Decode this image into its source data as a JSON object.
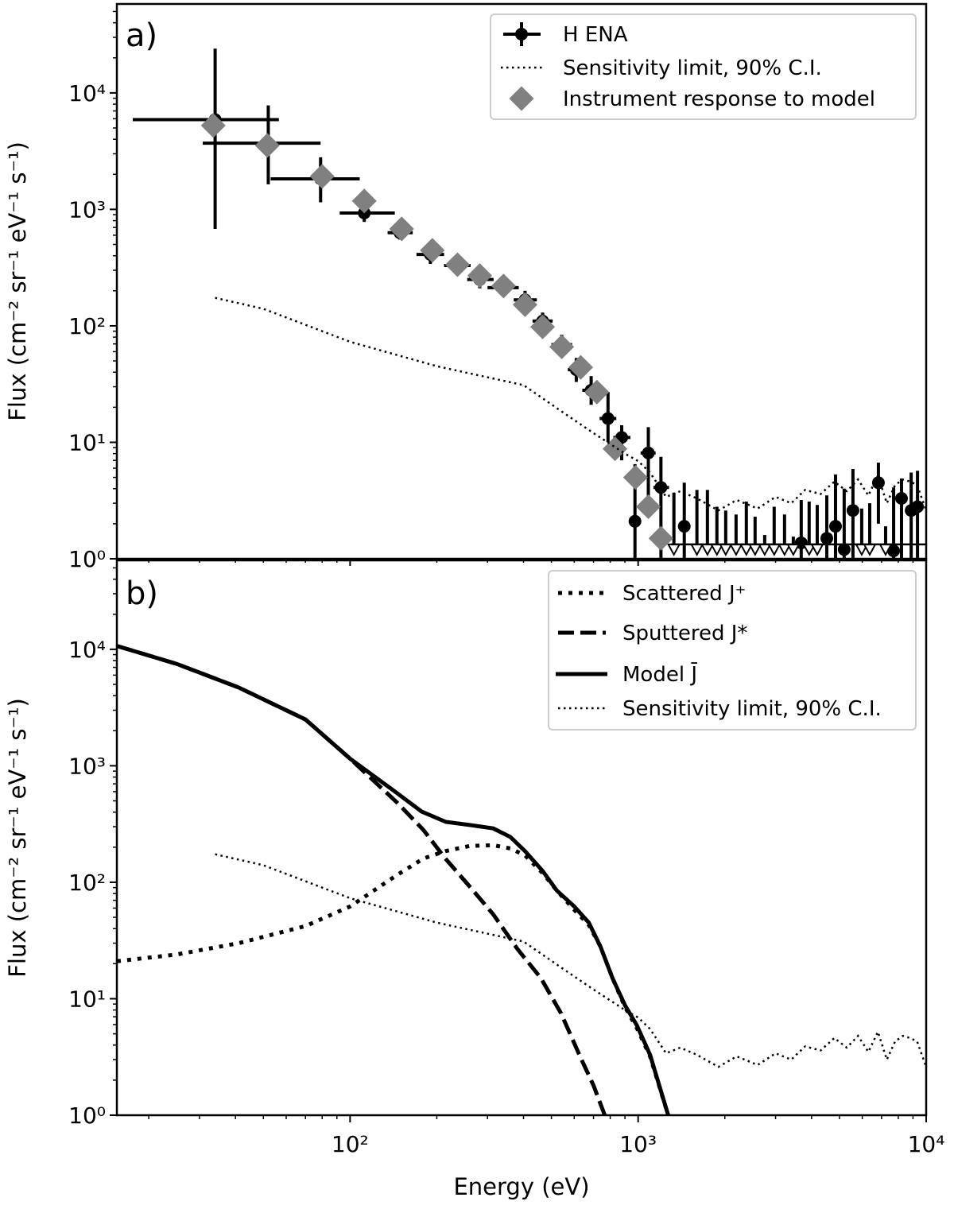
{
  "chart_data": [
    {
      "type": "scatter",
      "panel_label": "a)",
      "xscale": "log",
      "yscale": "log",
      "xlim": [
        15.5,
        10000
      ],
      "ylim": [
        1,
        58000
      ],
      "ylabel": "Flux (cm⁻² sr⁻¹ eV⁻¹ s⁻¹)",
      "yticks": [
        {
          "v": 1,
          "label": "10⁰"
        },
        {
          "v": 10,
          "label": "10¹"
        },
        {
          "v": 100,
          "label": "10²"
        },
        {
          "v": 1000,
          "label": "10³"
        },
        {
          "v": 10000,
          "label": "10⁴"
        }
      ],
      "legend_position": "top-right",
      "legend": [
        "H ENA",
        "Sensitivity limit, 90% C.I.",
        "Instrument response to model"
      ],
      "series": [
        {
          "name": "H ENA",
          "kind": "errorbar",
          "color": "#000000",
          "columns": [
            "E",
            "flux",
            "E_lo",
            "E_hi",
            "flux_lo",
            "flux_hi"
          ],
          "points": [
            [
              34,
              5900,
              17.6,
              56.6,
              680,
              24000
            ],
            [
              52,
              3700,
              30.8,
              79,
              1640,
              7800
            ],
            [
              79,
              1830,
              53,
              108,
              1150,
              2800
            ],
            [
              112,
              930,
              92,
              143,
              780,
              1120
            ],
            [
              149,
              630,
              135,
              165,
              550,
              720
            ],
            [
              190,
              410,
              170,
              212,
              340,
              500
            ],
            [
              236,
              330,
              212,
              262,
              280,
              390
            ],
            [
              282,
              250,
              255,
              315,
              210,
              300
            ],
            [
              341,
              213,
              300,
              385,
              180,
              250
            ],
            [
              405,
              167,
              370,
              445,
              140,
              200
            ],
            [
              466,
              110,
              430,
              505,
              92,
              130
            ],
            [
              543,
              69,
              500,
              590,
              57,
              84
            ],
            [
              610,
              42,
              570,
              660,
              33,
              53
            ],
            [
              687,
              28,
              640,
              740,
              21,
              37
            ],
            [
              786,
              16,
              735,
              840,
              10,
              27
            ],
            [
              877,
              11,
              820,
              940,
              7,
              14
            ],
            [
              975,
              2.1,
              940,
              1020,
              1.0,
              6.5
            ],
            [
              1085,
              8.1,
              1020,
              1150,
              3.0,
              13.5
            ],
            [
              1200,
              4.1,
              1130,
              1280,
              1.0,
              7.5
            ],
            [
              1446,
              1.9,
              1390,
              1500,
              1.0,
              4.5
            ],
            [
              3683,
              1.37,
              3600,
              3760,
              1.0,
              3.2
            ],
            [
              4518,
              1.5,
              4420,
              4620,
              1.0,
              3.5
            ],
            [
              4845,
              1.9,
              4740,
              4950,
              1.0,
              5.3
            ],
            [
              5192,
              1.2,
              5080,
              5300,
              1.0,
              4.0
            ],
            [
              5569,
              2.6,
              5450,
              5690,
              1.0,
              5.9
            ],
            [
              6826,
              4.5,
              6600,
              7050,
              2.0,
              6.7
            ],
            [
              7709,
              1.17,
              7550,
              7870,
              1.0,
              4.1
            ],
            [
              8210,
              3.3,
              8040,
              8380,
              1.0,
              4.9
            ],
            [
              8870,
              2.6,
              8680,
              9060,
              1.0,
              5.5
            ],
            [
              9330,
              2.8,
              9130,
              9530,
              1.0,
              5.7
            ]
          ]
        },
        {
          "name": "Upper limits",
          "kind": "upper_limit",
          "marker_value": 1.23,
          "columns": [
            "E",
            "flux_upper"
          ],
          "points": [
            [
              1331,
              3.7
            ],
            [
              1600,
              3.9
            ],
            [
              1740,
              3.9
            ],
            [
              1877,
              2.8
            ],
            [
              2014,
              2.6
            ],
            [
              2188,
              2.4
            ],
            [
              2375,
              3.1
            ],
            [
              2547,
              2.3
            ],
            [
              2750,
              1.6
            ],
            [
              2967,
              2.8
            ],
            [
              3223,
              2.4
            ],
            [
              3457,
              1.55
            ],
            [
              3924,
              3.1
            ],
            [
              4186,
              2.9
            ],
            [
              5973,
              2.7
            ],
            [
              6368,
              3.0
            ],
            [
              7230,
              1.9
            ]
          ]
        },
        {
          "name": "Instrument response to model",
          "kind": "diamond",
          "color": "#808080",
          "points": [
            [
              33.5,
              5250
            ],
            [
              51.6,
              3540
            ],
            [
              80,
              1920
            ],
            [
              112,
              1180
            ],
            [
              151,
              680
            ],
            [
              193,
              445
            ],
            [
              236,
              335
            ],
            [
              282,
              270
            ],
            [
              341,
              220
            ],
            [
              405,
              152
            ],
            [
              466,
              98
            ],
            [
              543,
              66
            ],
            [
              632,
              44
            ],
            [
              719,
              27
            ],
            [
              831,
              8.8
            ],
            [
              979,
              5.0
            ],
            [
              1085,
              2.8
            ],
            [
              1200,
              1.5
            ]
          ]
        },
        {
          "name": "Sensitivity limit, 90% C.I.",
          "kind": "dotted-line",
          "color": "#000000",
          "points": [
            [
              34,
              174
            ],
            [
              50,
              140
            ],
            [
              100,
              73
            ],
            [
              200,
              45
            ],
            [
              400,
              31
            ],
            [
              550,
              18
            ],
            [
              700,
              12
            ],
            [
              900,
              8
            ],
            [
              1000,
              6.9
            ],
            [
              1100,
              5.5
            ],
            [
              1250,
              3.4
            ],
            [
              1400,
              3.8
            ],
            [
              1600,
              3.3
            ],
            [
              1900,
              2.6
            ],
            [
              2200,
              3.2
            ],
            [
              2600,
              2.7
            ],
            [
              3000,
              3.4
            ],
            [
              3400,
              3.0
            ],
            [
              3800,
              3.9
            ],
            [
              4300,
              3.6
            ],
            [
              4800,
              4.6
            ],
            [
              5300,
              3.8
            ],
            [
              5800,
              4.8
            ],
            [
              6300,
              3.5
            ],
            [
              6800,
              5.2
            ],
            [
              7300,
              3.0
            ],
            [
              7800,
              4.3
            ],
            [
              8300,
              4.8
            ],
            [
              8800,
              4.6
            ],
            [
              9300,
              4.3
            ],
            [
              10000,
              2.6
            ]
          ]
        }
      ]
    },
    {
      "type": "line",
      "panel_label": "b)",
      "xscale": "log",
      "yscale": "log",
      "xlim": [
        15.5,
        10000
      ],
      "ylim": [
        1,
        58000
      ],
      "xlabel": "Energy (eV)",
      "ylabel": "Flux (cm⁻² sr⁻¹ eV⁻¹ s⁻¹)",
      "xticks": [
        {
          "v": 100,
          "label": "10²"
        },
        {
          "v": 1000,
          "label": "10³"
        },
        {
          "v": 10000,
          "label": "10⁴"
        }
      ],
      "yticks": [
        {
          "v": 1,
          "label": "10⁰"
        },
        {
          "v": 10,
          "label": "10¹"
        },
        {
          "v": 100,
          "label": "10²"
        },
        {
          "v": 1000,
          "label": "10³"
        },
        {
          "v": 10000,
          "label": "10⁴"
        }
      ],
      "legend_position": "top-right",
      "legend": [
        "Scattered  J⁺",
        "Sputtered  J*",
        "Model  J̄",
        "Sensitivity limit, 90% C.I."
      ],
      "series": [
        {
          "name": "Scattered J+",
          "style": "dotted-thick",
          "points": [
            [
              15.5,
              21
            ],
            [
              25,
              24
            ],
            [
              41,
              30
            ],
            [
              70,
              42
            ],
            [
              100,
              62
            ],
            [
              146,
              116
            ],
            [
              180,
              160
            ],
            [
              214,
              185
            ],
            [
              260,
              205
            ],
            [
              314,
              208
            ],
            [
              360,
              195
            ],
            [
              405,
              170
            ],
            [
              466,
              120
            ],
            [
              522,
              85
            ],
            [
              600,
              58
            ],
            [
              674,
              43
            ],
            [
              740,
              28
            ],
            [
              815,
              15
            ],
            [
              900,
              8.5
            ],
            [
              990,
              5.6
            ],
            [
              1100,
              3.2
            ],
            [
              1272,
              1
            ]
          ]
        },
        {
          "name": "Sputtered J*",
          "style": "dashed",
          "points": [
            [
              15.5,
              10700
            ],
            [
              25,
              7500
            ],
            [
              41,
              4700
            ],
            [
              70,
              2500
            ],
            [
              100,
              1150
            ],
            [
              146,
              480
            ],
            [
              180,
              280
            ],
            [
              214,
              160
            ],
            [
              260,
              92
            ],
            [
              314,
              53
            ],
            [
              380,
              27
            ],
            [
              460,
              15
            ],
            [
              540,
              7.5
            ],
            [
              632,
              3.1
            ],
            [
              700,
              1.8
            ],
            [
              766,
              1
            ]
          ]
        },
        {
          "name": "Model J̄",
          "style": "solid",
          "points": [
            [
              15.5,
              10700
            ],
            [
              25,
              7500
            ],
            [
              41,
              4700
            ],
            [
              70,
              2500
            ],
            [
              100,
              1150
            ],
            [
              146,
              580
            ],
            [
              177,
              405
            ],
            [
              215,
              330
            ],
            [
              260,
              310
            ],
            [
              314,
              290
            ],
            [
              360,
              245
            ],
            [
              405,
              185
            ],
            [
              466,
              125
            ],
            [
              522,
              85
            ],
            [
              600,
              62
            ],
            [
              674,
              45
            ],
            [
              740,
              28
            ],
            [
              815,
              15
            ],
            [
              900,
              8.8
            ],
            [
              990,
              5.9
            ],
            [
              1100,
              3.3
            ],
            [
              1272,
              1
            ]
          ]
        },
        {
          "name": "Sensitivity limit, 90% C.I.",
          "style": "dotted-thin",
          "points": [
            [
              34,
              174
            ],
            [
              50,
              140
            ],
            [
              100,
              73
            ],
            [
              200,
              45
            ],
            [
              400,
              31
            ],
            [
              550,
              18
            ],
            [
              700,
              12
            ],
            [
              900,
              8
            ],
            [
              1000,
              6.9
            ],
            [
              1100,
              5.5
            ],
            [
              1250,
              3.4
            ],
            [
              1400,
              3.8
            ],
            [
              1600,
              3.3
            ],
            [
              1900,
              2.6
            ],
            [
              2200,
              3.2
            ],
            [
              2600,
              2.7
            ],
            [
              3000,
              3.4
            ],
            [
              3400,
              3.0
            ],
            [
              3800,
              3.9
            ],
            [
              4300,
              3.6
            ],
            [
              4800,
              4.6
            ],
            [
              5300,
              3.8
            ],
            [
              5800,
              4.8
            ],
            [
              6300,
              3.5
            ],
            [
              6800,
              5.2
            ],
            [
              7300,
              3.0
            ],
            [
              7800,
              4.3
            ],
            [
              8300,
              4.8
            ],
            [
              8800,
              4.6
            ],
            [
              9300,
              4.3
            ],
            [
              10000,
              2.6
            ]
          ]
        }
      ]
    }
  ]
}
